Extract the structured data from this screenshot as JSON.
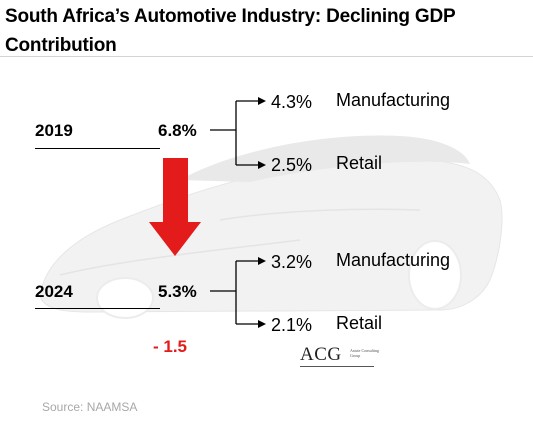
{
  "title": "South Africa’s Automotive Industry: Declining GDP Contribution",
  "years": [
    {
      "year": "2019",
      "total": "6.8%",
      "parts": [
        {
          "value": "4.3%",
          "label": "Manufacturing"
        },
        {
          "value": "2.5%",
          "label": "Retail"
        }
      ]
    },
    {
      "year": "2024",
      "total": "5.3%",
      "parts": [
        {
          "value": "3.2%",
          "label": "Manufacturing"
        },
        {
          "value": "2.1%",
          "label": "Retail"
        }
      ]
    }
  ],
  "change": "- 1.5",
  "source": "Source: NAAMSA",
  "logo": {
    "text": "ACG",
    "subtitle": "Astute Consulting Group"
  },
  "colors": {
    "arrow": "#e31b1b",
    "change": "#e31b1b",
    "source": "#a8a8a8",
    "car": "#f2f2f2"
  },
  "icons": {
    "background": "car-silhouette",
    "decline": "down-arrow-icon"
  }
}
